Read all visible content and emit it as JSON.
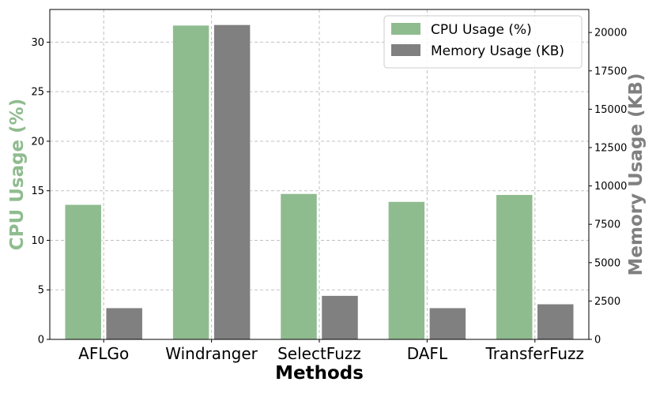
{
  "chart_data": {
    "type": "bar",
    "categories": [
      "AFLGo",
      "Windranger",
      "SelectFuzz",
      "DAFL",
      "TransferFuzz"
    ],
    "xlabel": "Methods",
    "series": [
      {
        "name": "CPU Usage (%)",
        "axis": "left",
        "color": "#8fbc8f",
        "values": [
          13.6,
          31.7,
          14.7,
          13.9,
          14.6
        ]
      },
      {
        "name": "Memory Usage (KB)",
        "axis": "right",
        "color": "#808080",
        "values": [
          2050,
          20500,
          2850,
          2050,
          2300
        ]
      }
    ],
    "left_axis": {
      "label": "CPU Usage (%)",
      "label_color": "#8fbc8f",
      "range": [
        0,
        33.3
      ],
      "ticks": [
        0,
        5,
        10,
        15,
        20,
        25,
        30
      ]
    },
    "right_axis": {
      "label": "Memory Usage (KB)",
      "label_color": "#808080",
      "range": [
        0,
        21500
      ],
      "ticks": [
        0,
        2500,
        5000,
        7500,
        10000,
        12500,
        15000,
        17500,
        20000
      ]
    },
    "grid": true,
    "legend": "top-right"
  }
}
